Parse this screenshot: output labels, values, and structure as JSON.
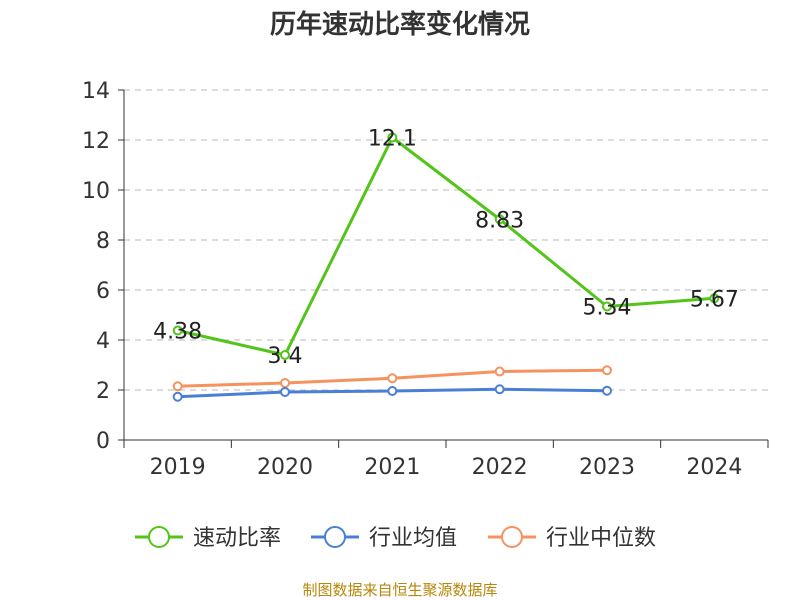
{
  "chart_data": {
    "type": "line",
    "title": "历年速动比率变化情况",
    "categories": [
      "2019",
      "2020",
      "2021",
      "2022",
      "2023",
      "2024"
    ],
    "ylim": [
      0,
      14
    ],
    "yticks": [
      0,
      2,
      4,
      6,
      8,
      10,
      12,
      14
    ],
    "grid": true,
    "legend_position": "bottom",
    "series": [
      {
        "name": "速动比率",
        "color": "#52c41a",
        "values": [
          4.38,
          3.4,
          12.1,
          8.83,
          5.34,
          5.67
        ],
        "labels": [
          "4.38",
          "3.4",
          "12.1",
          "8.83",
          "5.34",
          "5.67"
        ]
      },
      {
        "name": "行业均值",
        "color": "#4a7fd6",
        "values": [
          1.73,
          1.92,
          1.96,
          2.03,
          1.97,
          null
        ]
      },
      {
        "name": "行业中位数",
        "color": "#f5925e",
        "values": [
          2.15,
          2.28,
          2.47,
          2.74,
          2.79,
          null
        ]
      }
    ]
  },
  "source_note": "制图数据来自恒生聚源数据库"
}
